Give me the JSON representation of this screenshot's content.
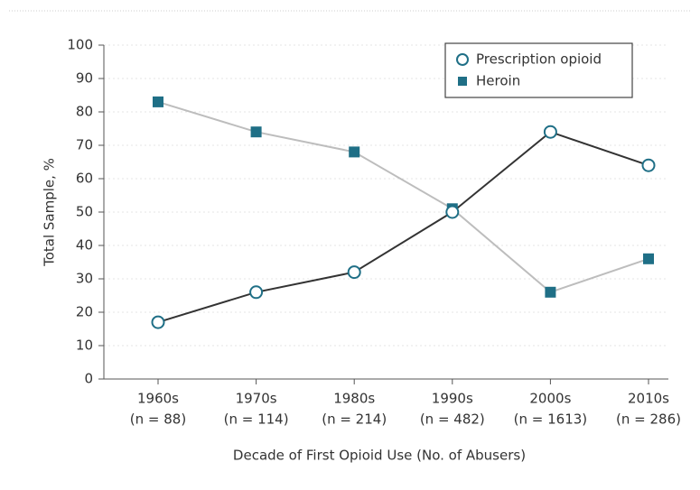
{
  "chart_data": {
    "type": "line",
    "x_label": "Decade of First Opioid Use (No. of Abusers)",
    "y_label": "Total Sample, %",
    "categories": [
      "1960s",
      "1970s",
      "1980s",
      "1990s",
      "2000s",
      "2010s"
    ],
    "category_notes": [
      "(n = 88)",
      "(n = 114)",
      "(n = 214)",
      "(n = 482)",
      "(n = 1613)",
      "(n = 286)"
    ],
    "series": [
      {
        "name": "Prescription opioid",
        "color": "#333333",
        "marker_color": "#1f6f86",
        "marker": "open-circle",
        "values": [
          17,
          26,
          32,
          50,
          74,
          64
        ]
      },
      {
        "name": "Heroin",
        "color": "#bdbdbd",
        "marker_color": "#1f6f86",
        "marker": "square",
        "values": [
          83,
          74,
          68,
          51,
          26,
          36
        ]
      }
    ],
    "ylim": [
      0,
      100
    ],
    "yticks": [
      0,
      10,
      20,
      30,
      40,
      50,
      60,
      70,
      80,
      90,
      100
    ],
    "grid": true,
    "legend": "upper right"
  }
}
